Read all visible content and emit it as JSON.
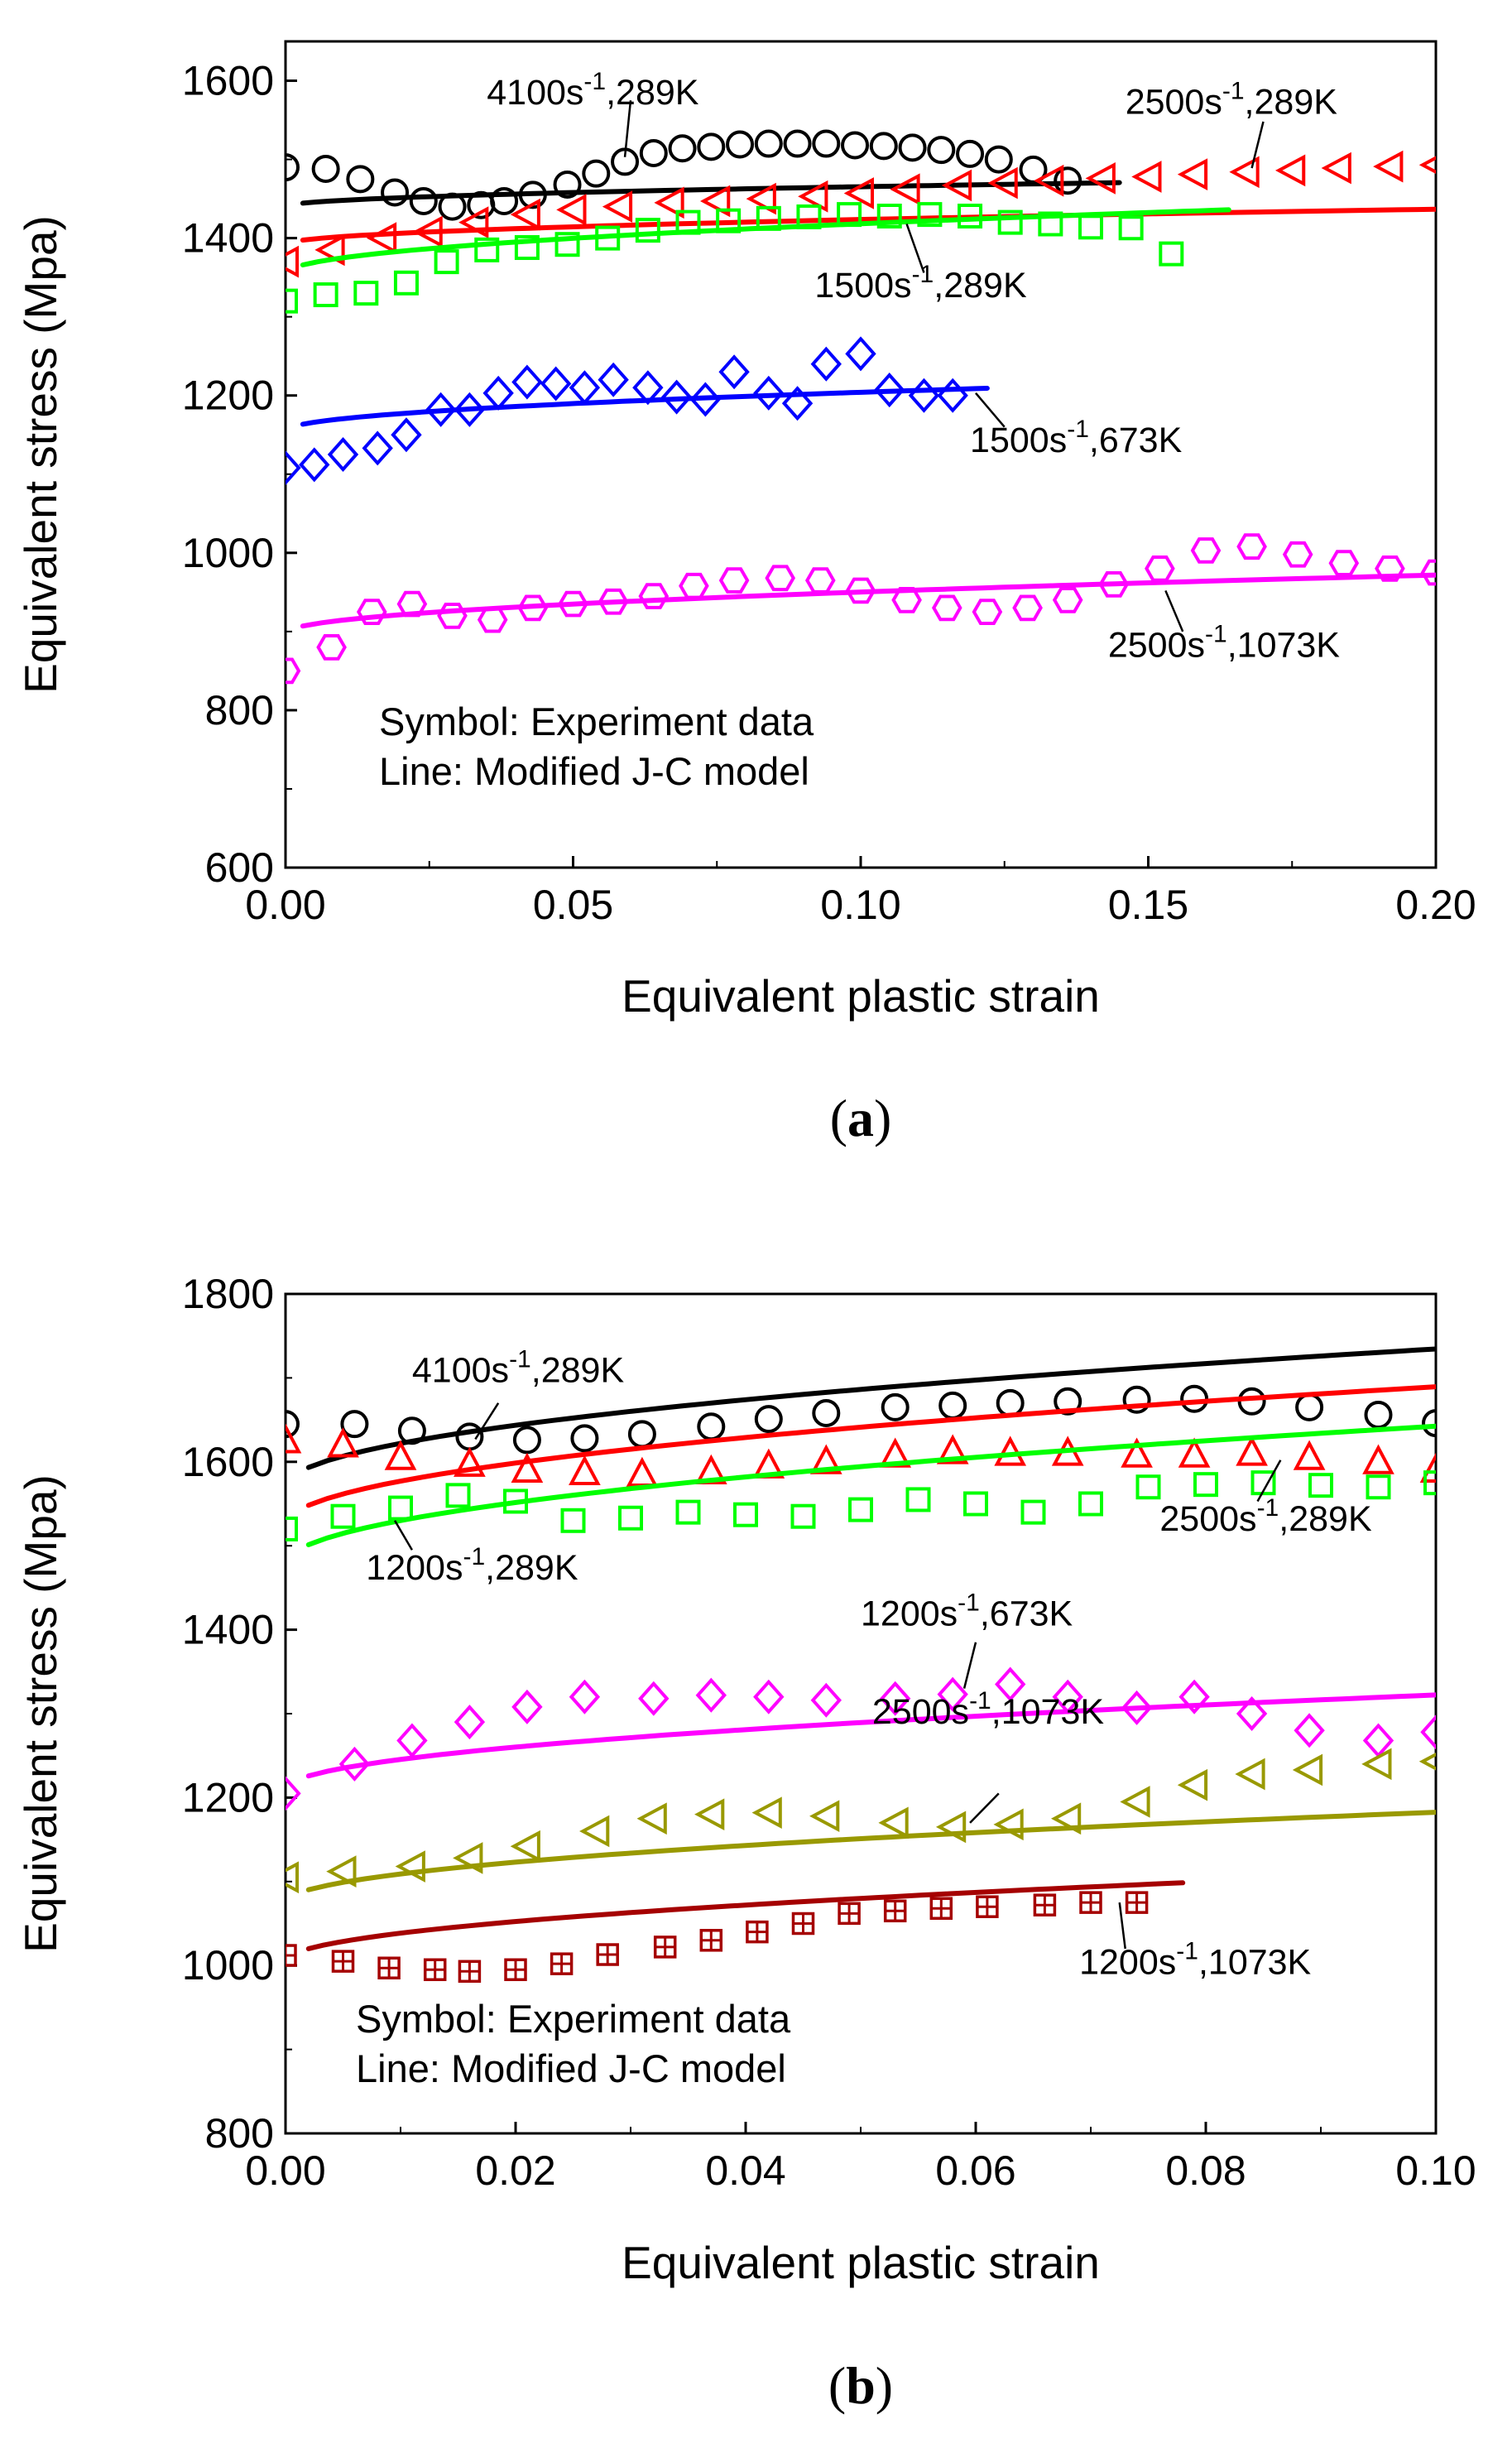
{
  "chart_data": [
    {
      "type": "scatter",
      "panel": "a",
      "caption": "a",
      "xlabel": "Equivalent plastic strain",
      "ylabel": "Equivalent stress (Mpa)",
      "xlim": [
        0,
        0.2
      ],
      "ylim": [
        600,
        1650
      ],
      "xticks": [
        "0.00",
        "0.05",
        "0.10",
        "0.15",
        "0.20"
      ],
      "xtick_values": [
        0,
        0.05,
        0.1,
        0.15,
        0.2
      ],
      "yticks": [
        "600",
        "800",
        "1000",
        "1200",
        "1400",
        "1600"
      ],
      "ytick_values": [
        600,
        800,
        1000,
        1200,
        1400,
        1600
      ],
      "notes": [
        "Symbol: Experiment data",
        "Line: Modified J-C model"
      ],
      "series": [
        {
          "id": "a-4100-289",
          "label_main": "4100s",
          "label_sup": "-1",
          "label_tail": ",289K",
          "color": "#000000",
          "marker": "circle",
          "model": {
            "A": 1440,
            "B": 80,
            "n": 0.5,
            "x0": 0.003,
            "x1": 0.145
          },
          "x": [
            0.0,
            0.007,
            0.013,
            0.019,
            0.024,
            0.029,
            0.034,
            0.038,
            0.043,
            0.049,
            0.054,
            0.059,
            0.064,
            0.069,
            0.074,
            0.079,
            0.084,
            0.089,
            0.094,
            0.099,
            0.104,
            0.109,
            0.114,
            0.119,
            0.124,
            0.13,
            0.136
          ],
          "y": [
            1490,
            1488,
            1475,
            1458,
            1447,
            1440,
            1442,
            1447,
            1455,
            1468,
            1482,
            1497,
            1508,
            1514,
            1516,
            1519,
            1520,
            1520,
            1520,
            1518,
            1517,
            1515,
            1512,
            1507,
            1500,
            1487,
            1473
          ]
        },
        {
          "id": "a-2500-289",
          "label_main": "2500s",
          "label_sup": "-1",
          "label_tail": ",289K",
          "color": "#ff0000",
          "marker": "triangle-left",
          "model": {
            "A": 1392,
            "B": 100,
            "n": 0.5,
            "x0": 0.003,
            "x1": 0.2
          },
          "x": [
            0.0,
            0.008,
            0.017,
            0.025,
            0.033,
            0.042,
            0.05,
            0.058,
            0.067,
            0.075,
            0.083,
            0.092,
            0.1,
            0.108,
            0.117,
            0.125,
            0.133,
            0.142,
            0.15,
            0.158,
            0.167,
            0.175,
            0.183,
            0.192,
            0.2
          ],
          "y": [
            1370,
            1385,
            1400,
            1408,
            1420,
            1430,
            1436,
            1440,
            1445,
            1447,
            1450,
            1453,
            1457,
            1462,
            1467,
            1470,
            1473,
            1476,
            1478,
            1481,
            1484,
            1486,
            1489,
            1491,
            1493
          ]
        },
        {
          "id": "a-1500-289",
          "label_main": "1500s",
          "label_sup": "-1",
          "label_tail": ",289K",
          "color": "#00ff00",
          "marker": "square",
          "model": {
            "A": 1355,
            "B": 200,
            "n": 0.5,
            "x0": 0.003,
            "x1": 0.164
          },
          "x": [
            0.0,
            0.007,
            0.014,
            0.021,
            0.028,
            0.035,
            0.042,
            0.049,
            0.056,
            0.063,
            0.07,
            0.077,
            0.084,
            0.091,
            0.098,
            0.105,
            0.112,
            0.119,
            0.126,
            0.133,
            0.14,
            0.147,
            0.154
          ],
          "y": [
            1320,
            1328,
            1330,
            1343,
            1370,
            1385,
            1388,
            1392,
            1400,
            1410,
            1420,
            1422,
            1425,
            1427,
            1430,
            1428,
            1430,
            1428,
            1420,
            1418,
            1414,
            1413,
            1380
          ]
        },
        {
          "id": "a-1500-673",
          "label_main": "1500s",
          "label_sup": "-1",
          "label_tail": ",673K",
          "color": "#0000ff",
          "marker": "diamond",
          "model": {
            "A": 1155,
            "B": 155,
            "n": 0.5,
            "x0": 0.003,
            "x1": 0.122
          },
          "x": [
            0.0,
            0.005,
            0.01,
            0.016,
            0.021,
            0.027,
            0.032,
            0.037,
            0.042,
            0.047,
            0.052,
            0.057,
            0.063,
            0.068,
            0.073,
            0.078,
            0.084,
            0.089,
            0.094,
            0.1,
            0.105,
            0.111,
            0.116
          ],
          "y": [
            1108,
            1112,
            1125,
            1133,
            1150,
            1182,
            1182,
            1203,
            1217,
            1215,
            1210,
            1220,
            1210,
            1198,
            1195,
            1230,
            1203,
            1190,
            1240,
            1253,
            1207,
            1200,
            1200
          ]
        },
        {
          "id": "a-2500-1073",
          "label_main": "2500s",
          "label_sup": "-1",
          "label_tail": ",1073K",
          "color": "#ff00ff",
          "marker": "hexagon",
          "model": {
            "A": 898,
            "B": 165,
            "n": 0.5,
            "x0": 0.003,
            "x1": 0.2
          },
          "x": [
            0.0,
            0.008,
            0.015,
            0.022,
            0.029,
            0.036,
            0.043,
            0.05,
            0.057,
            0.064,
            0.071,
            0.078,
            0.086,
            0.093,
            0.1,
            0.108,
            0.115,
            0.122,
            0.129,
            0.136,
            0.144,
            0.152,
            0.16,
            0.168,
            0.176,
            0.184,
            0.192,
            0.2
          ],
          "y": [
            850,
            880,
            925,
            935,
            920,
            915,
            930,
            935,
            938,
            945,
            958,
            965,
            968,
            965,
            952,
            940,
            930,
            925,
            930,
            940,
            960,
            980,
            1003,
            1008,
            998,
            987,
            980,
            975
          ]
        }
      ],
      "labels": [
        {
          "series": "a-4100-289",
          "main": "4100s",
          "sup": "-1",
          "tail": ",289K",
          "lx": 0.035,
          "ly": 1570,
          "ax": 0.06,
          "ay": 1575,
          "bx": 0.059,
          "by": 1503
        },
        {
          "series": "a-2500-289",
          "main": "2500s",
          "sup": "-1",
          "tail": ",289K",
          "lx": 0.146,
          "ly": 1558,
          "ax": 0.17,
          "ay": 1548,
          "bx": 0.168,
          "by": 1489
        },
        {
          "series": "a-1500-289",
          "main": "1500s",
          "sup": "-1",
          "tail": ",289K",
          "lx": 0.092,
          "ly": 1325,
          "ax": 0.111,
          "ay": 1356,
          "bx": 0.108,
          "by": 1418
        },
        {
          "series": "a-1500-673",
          "main": "1500s",
          "sup": "-1",
          "tail": ",673K",
          "lx": 0.119,
          "ly": 1128,
          "ax": 0.125,
          "ay": 1160,
          "bx": 0.12,
          "by": 1203
        },
        {
          "series": "a-2500-1073",
          "main": "2500s",
          "sup": "-1",
          "tail": ",1073K",
          "lx": 0.143,
          "ly": 868,
          "ax": 0.156,
          "ay": 900,
          "bx": 0.153,
          "by": 952
        }
      ]
    },
    {
      "type": "scatter",
      "panel": "b",
      "caption": "b",
      "xlabel": "Equivalent plastic strain",
      "ylabel": "Equivalent stress (Mpa)",
      "xlim": [
        0,
        0.1
      ],
      "ylim": [
        800,
        1800
      ],
      "xticks": [
        "0.00",
        "0.02",
        "0.04",
        "0.06",
        "0.08",
        "0.10"
      ],
      "xtick_values": [
        0,
        0.02,
        0.04,
        0.06,
        0.08,
        0.1
      ],
      "yticks": [
        "800",
        "1000",
        "1200",
        "1400",
        "1600",
        "1800"
      ],
      "ytick_values": [
        800,
        1000,
        1200,
        1400,
        1600,
        1800
      ],
      "notes": [
        "Symbol: Experiment data",
        "Line: Modified J-C model"
      ],
      "series": [
        {
          "id": "b-4100-289",
          "label_main": "4100s",
          "label_sup": "-1",
          "label_tail": ",289K",
          "color": "#000000",
          "marker": "circle",
          "model": {
            "A": 1570,
            "B": 520,
            "n": 0.5,
            "x0": 0.002,
            "x1": 0.1
          },
          "x": [
            0.0,
            0.006,
            0.011,
            0.016,
            0.021,
            0.026,
            0.031,
            0.037,
            0.042,
            0.047,
            0.053,
            0.058,
            0.063,
            0.068,
            0.074,
            0.079,
            0.084,
            0.089,
            0.095,
            0.1
          ],
          "y": [
            1645,
            1645,
            1637,
            1630,
            1626,
            1628,
            1633,
            1642,
            1651,
            1658,
            1665,
            1667,
            1670,
            1672,
            1674,
            1675,
            1672,
            1665,
            1656,
            1646
          ]
        },
        {
          "id": "b-2500-289",
          "label_main": "2500s",
          "label_sup": "-1",
          "label_tail": ",289K",
          "color": "#ff0000",
          "marker": "triangle-up",
          "model": {
            "A": 1525,
            "B": 520,
            "n": 0.5,
            "x0": 0.002,
            "x1": 0.1
          },
          "x": [
            0.0,
            0.005,
            0.01,
            0.016,
            0.021,
            0.026,
            0.031,
            0.037,
            0.042,
            0.047,
            0.053,
            0.058,
            0.063,
            0.068,
            0.074,
            0.079,
            0.084,
            0.089,
            0.095,
            0.1
          ],
          "y": [
            1625,
            1620,
            1605,
            1597,
            1590,
            1587,
            1585,
            1588,
            1595,
            1600,
            1608,
            1612,
            1610,
            1610,
            1608,
            1608,
            1610,
            1605,
            1600,
            1590
          ]
        },
        {
          "id": "b-1200-289",
          "label_main": "1200s",
          "label_sup": "-1",
          "label_tail": ",289K",
          "color": "#00ff00",
          "marker": "square",
          "model": {
            "A": 1478,
            "B": 520,
            "n": 0.5,
            "x0": 0.002,
            "x1": 0.1
          },
          "x": [
            0.0,
            0.005,
            0.01,
            0.015,
            0.02,
            0.025,
            0.03,
            0.035,
            0.04,
            0.045,
            0.05,
            0.055,
            0.06,
            0.065,
            0.07,
            0.075,
            0.08,
            0.085,
            0.09,
            0.095,
            0.1
          ],
          "y": [
            1520,
            1535,
            1545,
            1560,
            1553,
            1530,
            1533,
            1540,
            1537,
            1535,
            1543,
            1555,
            1550,
            1540,
            1550,
            1570,
            1573,
            1575,
            1572,
            1570,
            1575
          ]
        },
        {
          "id": "b-1200-673",
          "label_main": "1200s",
          "label_sup": "-1",
          "label_tail": ",673K",
          "color": "#ff00ff",
          "marker": "diamond",
          "model": {
            "A": 1210,
            "B": 355,
            "n": 0.5,
            "x0": 0.002,
            "x1": 0.1
          },
          "x": [
            0.0,
            0.006,
            0.011,
            0.016,
            0.021,
            0.026,
            0.032,
            0.037,
            0.042,
            0.047,
            0.053,
            0.058,
            0.063,
            0.068,
            0.074,
            0.079,
            0.084,
            0.089,
            0.095,
            0.1
          ],
          "y": [
            1205,
            1240,
            1268,
            1290,
            1308,
            1320,
            1318,
            1322,
            1320,
            1316,
            1318,
            1323,
            1335,
            1320,
            1307,
            1320,
            1300,
            1280,
            1268,
            1278
          ]
        },
        {
          "id": "b-2500-1073",
          "label_main": "2500s",
          "label_sup": "-1",
          "label_tail": ",1073K",
          "color": "#999900",
          "marker": "triangle-left",
          "model": {
            "A": 1075,
            "B": 340,
            "n": 0.5,
            "x0": 0.002,
            "x1": 0.1
          },
          "x": [
            0.0,
            0.005,
            0.011,
            0.016,
            0.021,
            0.027,
            0.032,
            0.037,
            0.042,
            0.047,
            0.053,
            0.058,
            0.063,
            0.068,
            0.074,
            0.079,
            0.084,
            0.089,
            0.095,
            0.1
          ],
          "y": [
            1105,
            1112,
            1118,
            1128,
            1142,
            1160,
            1175,
            1180,
            1182,
            1178,
            1170,
            1165,
            1168,
            1175,
            1195,
            1215,
            1228,
            1233,
            1240,
            1243
          ]
        },
        {
          "id": "b-1200-1073",
          "label_main": "1200s",
          "label_sup": "-1",
          "label_tail": ",1073K",
          "color": "#a50000",
          "marker": "boxed-plus",
          "model": {
            "A": 1005,
            "B": 335,
            "n": 0.5,
            "x0": 0.002,
            "x1": 0.078
          },
          "x": [
            0.0,
            0.005,
            0.009,
            0.013,
            0.016,
            0.02,
            0.024,
            0.028,
            0.033,
            0.037,
            0.041,
            0.045,
            0.049,
            0.053,
            0.057,
            0.061,
            0.066,
            0.07,
            0.074
          ],
          "y": [
            1012,
            1005,
            997,
            995,
            993,
            995,
            1002,
            1013,
            1022,
            1030,
            1040,
            1050,
            1062,
            1065,
            1068,
            1070,
            1072,
            1075,
            1075
          ]
        }
      ],
      "labels": [
        {
          "series": "b-4100-289",
          "main": "4100s",
          "sup": "-1",
          "tail": ",289K",
          "lx": 0.011,
          "ly": 1695,
          "ax": 0.0185,
          "ay": 1670,
          "bx": 0.0165,
          "by": 1627
        },
        {
          "series": "b-2500-289",
          "main": "2500s",
          "sup": "-1",
          "tail": ",289K",
          "lx": 0.076,
          "ly": 1518,
          "ax": 0.0845,
          "ay": 1553,
          "bx": 0.0865,
          "by": 1602
        },
        {
          "series": "b-1200-289",
          "main": "1200s",
          "sup": "-1",
          "tail": ",289K",
          "lx": 0.007,
          "ly": 1460,
          "ax": 0.011,
          "ay": 1495,
          "bx": 0.0095,
          "by": 1530
        },
        {
          "series": "b-1200-673",
          "main": "1200s",
          "sup": "-1",
          "tail": ",673K",
          "lx": 0.05,
          "ly": 1405,
          "ax": 0.06,
          "ay": 1385,
          "bx": 0.059,
          "by": 1330
        },
        {
          "series": "b-2500-1073",
          "main": "2500s",
          "sup": "-1",
          "tail": ",1073K",
          "lx": 0.051,
          "ly": 1288,
          "ax": 0.062,
          "ay": 1205,
          "bx": 0.0595,
          "by": 1170
        },
        {
          "series": "b-1200-1073",
          "main": "1200s",
          "sup": "-1",
          "tail": ",1073K",
          "lx": 0.069,
          "ly": 990,
          "ax": 0.073,
          "ay": 1020,
          "bx": 0.0725,
          "by": 1075
        }
      ]
    }
  ]
}
